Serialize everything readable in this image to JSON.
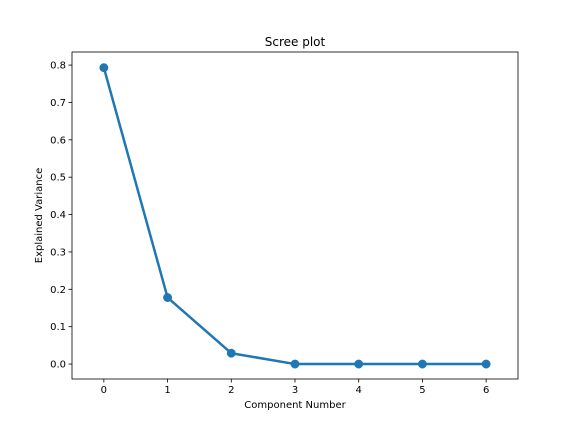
{
  "chart_data": {
    "type": "line",
    "title": "Scree plot",
    "xlabel": "Component Number",
    "ylabel": "Explained Variance",
    "x": [
      0,
      1,
      2,
      3,
      4,
      5,
      6
    ],
    "series": [
      {
        "values": [
          0.793,
          0.178,
          0.029,
          0.0,
          0.0,
          0.0,
          0.0
        ],
        "color": "#1f77b4",
        "marker": "circle"
      }
    ],
    "xlim": [
      -0.5,
      6.5
    ],
    "ylim": [
      -0.04,
      0.835
    ],
    "xticks": [
      0,
      1,
      2,
      3,
      4,
      5,
      6
    ],
    "yticks": [
      0.0,
      0.1,
      0.2,
      0.3,
      0.4,
      0.5,
      0.6,
      0.7,
      0.8
    ],
    "xtick_labels": [
      "0",
      "1",
      "2",
      "3",
      "4",
      "5",
      "6"
    ],
    "ytick_labels": [
      "0.0",
      "0.1",
      "0.2",
      "0.3",
      "0.4",
      "0.5",
      "0.6",
      "0.7",
      "0.8"
    ],
    "grid": false,
    "legend": "none"
  }
}
